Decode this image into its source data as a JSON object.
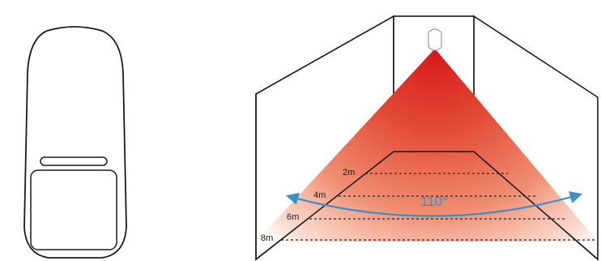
{
  "diagram": {
    "range_labels": [
      "2m",
      "4m",
      "6m",
      "8m"
    ],
    "angle_label": "110°",
    "colors": {
      "cone_hot": "#d7171a",
      "cone_fade": "#f6b9a0",
      "arrow": "#3a8fc9",
      "line": "#1a1a1a"
    },
    "icons": {
      "sensor": "pir-motion-sensor",
      "coverage": "detection-cone",
      "angle_arrow": "double-headed-arc-arrow"
    }
  }
}
